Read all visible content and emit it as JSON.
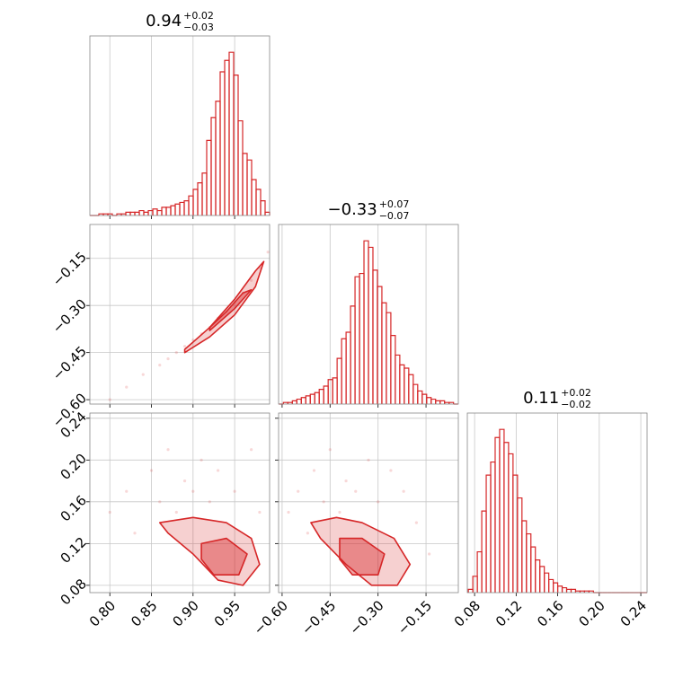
{
  "chart_data": [
    {
      "type": "histogram",
      "title": "0.94",
      "title_upper": "+0.02",
      "title_lower": "−0.03",
      "color": "#d62728",
      "xlim": [
        0.776,
        0.992
      ],
      "ylim": [
        0,
        110
      ],
      "bins": [
        0.776,
        0.7814,
        0.7868,
        0.7922,
        0.7976,
        0.803,
        0.8084,
        0.8138,
        0.8192,
        0.8246,
        0.83,
        0.8354,
        0.8408,
        0.8462,
        0.8516,
        0.857,
        0.8624,
        0.8678,
        0.8732,
        0.8786,
        0.884,
        0.8894,
        0.8948,
        0.9002,
        0.9056,
        0.911,
        0.9164,
        0.9218,
        0.9272,
        0.9326,
        0.938,
        0.9434,
        0.9488,
        0.9542,
        0.9596,
        0.965,
        0.9704,
        0.9758,
        0.9812,
        0.9866,
        0.992
      ],
      "values": [
        0,
        0,
        1,
        1,
        1,
        0,
        1,
        1,
        2,
        2,
        2,
        3,
        2,
        3,
        4,
        3,
        5,
        5,
        6,
        7,
        8,
        9,
        12,
        16,
        20,
        26,
        46,
        60,
        70,
        88,
        95,
        100,
        86,
        58,
        38,
        34,
        22,
        16,
        9,
        2
      ]
    },
    {
      "type": "contour",
      "color": "#d62728",
      "xlim": [
        0.776,
        0.992
      ],
      "ylim": [
        -0.614,
        -0.042
      ],
      "yticks": [
        {
          "value": -0.6,
          "label": "−0.60"
        },
        {
          "value": -0.45,
          "label": "−0.45"
        },
        {
          "value": -0.3,
          "label": "−0.30"
        },
        {
          "value": -0.15,
          "label": "−0.15"
        }
      ],
      "x": [
        0.8,
        0.82,
        0.84,
        0.86,
        0.87,
        0.88,
        0.89,
        0.9,
        0.91,
        0.92,
        0.93,
        0.94,
        0.95,
        0.96,
        0.97,
        0.98,
        0.99
      ],
      "y": [
        -0.6,
        -0.56,
        -0.52,
        -0.49,
        -0.47,
        -0.45,
        -0.43,
        -0.41,
        -0.39,
        -0.37,
        -0.34,
        -0.32,
        -0.29,
        -0.26,
        -0.22,
        -0.18,
        -0.13
      ],
      "contours": [
        {
          "x": [
            0.89,
            0.92,
            0.95,
            0.975,
            0.985,
            0.975,
            0.95,
            0.92,
            0.89
          ],
          "y": [
            -0.45,
            -0.4,
            -0.33,
            -0.24,
            -0.16,
            -0.19,
            -0.28,
            -0.37,
            -0.44
          ]
        },
        {
          "x": [
            0.92,
            0.95,
            0.97,
            0.96,
            0.94,
            0.92
          ],
          "y": [
            -0.38,
            -0.31,
            -0.25,
            -0.26,
            -0.32,
            -0.37
          ]
        }
      ]
    },
    {
      "type": "histogram",
      "title": "−0.33",
      "title_upper": "+0.07",
      "title_lower": "−0.07",
      "color": "#d62728",
      "xlim": [
        -0.611,
        -0.049
      ],
      "ylim": [
        0,
        110
      ],
      "bins": [
        -0.61,
        -0.596,
        -0.582,
        -0.568,
        -0.554,
        -0.54,
        -0.526,
        -0.512,
        -0.498,
        -0.484,
        -0.47,
        -0.456,
        -0.442,
        -0.428,
        -0.414,
        -0.4,
        -0.386,
        -0.372,
        -0.358,
        -0.344,
        -0.33,
        -0.316,
        -0.302,
        -0.288,
        -0.274,
        -0.26,
        -0.246,
        -0.232,
        -0.218,
        -0.204,
        -0.19,
        -0.176,
        -0.162,
        -0.148,
        -0.134,
        -0.12,
        -0.106,
        -0.092,
        -0.078,
        -0.064,
        -0.05
      ],
      "values": [
        0,
        1,
        1,
        2,
        3,
        4,
        5,
        6,
        7,
        9,
        11,
        15,
        16,
        28,
        40,
        44,
        60,
        78,
        80,
        100,
        96,
        82,
        72,
        62,
        56,
        42,
        30,
        24,
        22,
        18,
        12,
        8,
        6,
        4,
        3,
        2,
        2,
        1,
        1,
        0
      ]
    },
    {
      "type": "contour",
      "color": "#d62728",
      "xlim": [
        0.776,
        0.992
      ],
      "ylim": [
        0.073,
        0.245
      ],
      "xticks": [
        {
          "value": 0.8,
          "label": "0.80"
        },
        {
          "value": 0.85,
          "label": "0.85"
        },
        {
          "value": 0.9,
          "label": "0.90"
        },
        {
          "value": 0.95,
          "label": "0.95"
        }
      ],
      "yticks": [
        {
          "value": 0.08,
          "label": "0.08"
        },
        {
          "value": 0.12,
          "label": "0.12"
        },
        {
          "value": 0.16,
          "label": "0.16"
        },
        {
          "value": 0.2,
          "label": "0.20"
        },
        {
          "value": 0.24,
          "label": "0.24"
        }
      ],
      "x": [
        0.8,
        0.82,
        0.83,
        0.85,
        0.86,
        0.87,
        0.88,
        0.89,
        0.9,
        0.91,
        0.92,
        0.93,
        0.95,
        0.97,
        0.98
      ],
      "y": [
        0.15,
        0.17,
        0.13,
        0.19,
        0.16,
        0.21,
        0.15,
        0.18,
        0.17,
        0.2,
        0.16,
        0.19,
        0.17,
        0.21,
        0.15
      ],
      "contours": [
        {
          "x": [
            0.86,
            0.9,
            0.94,
            0.97,
            0.98,
            0.96,
            0.93,
            0.9,
            0.87
          ],
          "y": [
            0.14,
            0.145,
            0.14,
            0.125,
            0.1,
            0.08,
            0.085,
            0.11,
            0.13
          ]
        },
        {
          "x": [
            0.91,
            0.94,
            0.965,
            0.955,
            0.925,
            0.91
          ],
          "y": [
            0.12,
            0.125,
            0.11,
            0.09,
            0.09,
            0.105
          ]
        }
      ]
    },
    {
      "type": "contour",
      "color": "#d62728",
      "xlim": [
        -0.611,
        -0.049
      ],
      "ylim": [
        0.073,
        0.245
      ],
      "xticks": [
        {
          "value": -0.6,
          "label": "−0.60"
        },
        {
          "value": -0.45,
          "label": "−0.45"
        },
        {
          "value": -0.3,
          "label": "−0.30"
        },
        {
          "value": -0.15,
          "label": "−0.15"
        }
      ],
      "x": [
        -0.58,
        -0.55,
        -0.52,
        -0.5,
        -0.47,
        -0.45,
        -0.42,
        -0.4,
        -0.37,
        -0.33,
        -0.3,
        -0.26,
        -0.22,
        -0.18,
        -0.14
      ],
      "y": [
        0.15,
        0.17,
        0.13,
        0.19,
        0.16,
        0.21,
        0.15,
        0.18,
        0.17,
        0.2,
        0.16,
        0.19,
        0.17,
        0.14,
        0.11
      ],
      "contours": [
        {
          "x": [
            -0.51,
            -0.43,
            -0.35,
            -0.25,
            -0.2,
            -0.24,
            -0.32,
            -0.4,
            -0.48
          ],
          "y": [
            0.14,
            0.145,
            0.14,
            0.125,
            0.1,
            0.08,
            0.08,
            0.1,
            0.125
          ]
        },
        {
          "x": [
            -0.42,
            -0.35,
            -0.28,
            -0.3,
            -0.38,
            -0.42
          ],
          "y": [
            0.125,
            0.125,
            0.11,
            0.09,
            0.09,
            0.105
          ]
        }
      ]
    },
    {
      "type": "histogram",
      "title": "0.11",
      "title_upper": "+0.02",
      "title_lower": "−0.02",
      "color": "#d62728",
      "xlim": [
        0.073,
        0.246
      ],
      "ylim": [
        0,
        110
      ],
      "xticks": [
        {
          "value": 0.08,
          "label": "0.08"
        },
        {
          "value": 0.12,
          "label": "0.12"
        },
        {
          "value": 0.16,
          "label": "0.16"
        },
        {
          "value": 0.2,
          "label": "0.20"
        },
        {
          "value": 0.24,
          "label": "0.24"
        }
      ],
      "bins": [
        0.074,
        0.0783,
        0.0826,
        0.0869,
        0.0912,
        0.0955,
        0.0998,
        0.1041,
        0.1084,
        0.1127,
        0.117,
        0.1213,
        0.1256,
        0.1299,
        0.1342,
        0.1385,
        0.1428,
        0.1471,
        0.1514,
        0.1557,
        0.16,
        0.1643,
        0.1686,
        0.1729,
        0.1772,
        0.1815,
        0.1858,
        0.1901,
        0.1944,
        0.1987,
        0.203,
        0.2073,
        0.2116,
        0.2159,
        0.2202,
        0.2245,
        0.2288,
        0.2331,
        0.2374,
        0.2417,
        0.246
      ],
      "values": [
        2,
        10,
        25,
        50,
        72,
        80,
        95,
        100,
        92,
        85,
        72,
        58,
        44,
        36,
        28,
        20,
        16,
        12,
        8,
        6,
        4,
        3,
        2,
        2,
        1,
        1,
        1,
        1,
        0,
        0,
        0,
        0,
        0,
        0,
        0,
        0,
        0,
        0,
        0,
        0
      ]
    }
  ]
}
